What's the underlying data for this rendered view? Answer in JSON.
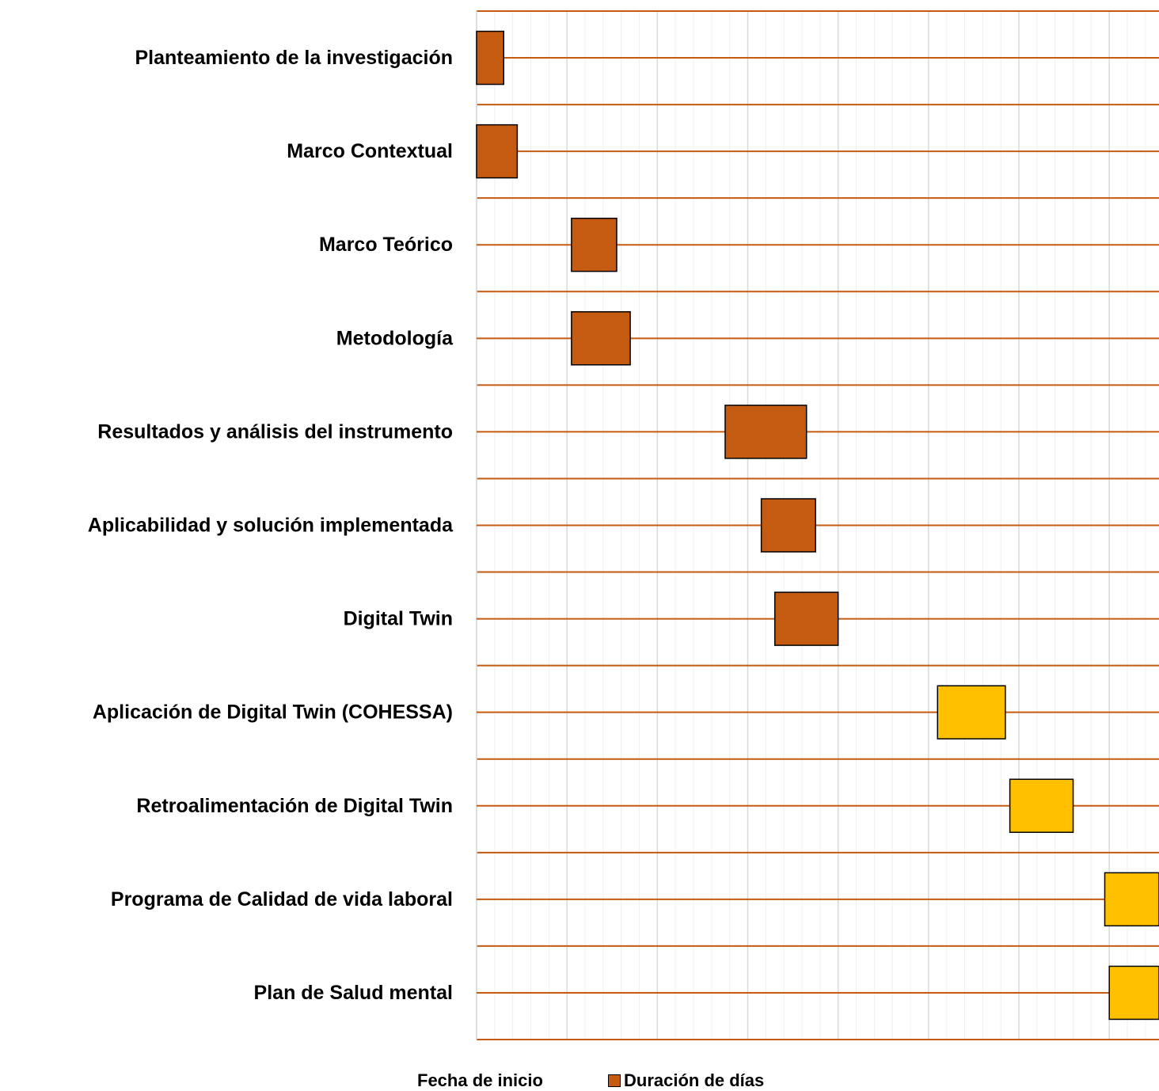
{
  "chart_data": {
    "type": "bar",
    "orientation": "horizontal",
    "stacked": true,
    "categories": [
      "Planteamiento de la investigación",
      "Marco Contextual",
      "Marco Teórico",
      "Metodología",
      "Resultados y análisis del instrumento",
      "Aplicabilidad y solución implementada",
      "Digital Twin",
      "Aplicación de Digital Twin (COHESSA)",
      "Retroalimentación de Digital Twin",
      "Programa de Calidad de vida laboral",
      "Plan de Salud mental "
    ],
    "x_range": [
      0,
      151
    ],
    "series": [
      {
        "name": "Fecha de inicio",
        "color": "none",
        "values": [
          0,
          0,
          21,
          21,
          55,
          63,
          66,
          102,
          118,
          139,
          140
        ]
      },
      {
        "name": "Duración de días",
        "color": "#c55a11",
        "values": [
          6,
          9,
          10,
          13,
          18,
          12,
          14,
          15,
          14,
          12,
          11
        ],
        "point_colors": [
          "#c55a11",
          "#c55a11",
          "#c55a11",
          "#c55a11",
          "#c55a11",
          "#c55a11",
          "#c55a11",
          "#ffc000",
          "#ffc000",
          "#ffc000",
          "#ffc000"
        ]
      }
    ],
    "grid": true,
    "legend_position": "bottom",
    "colors": {
      "row_line": "#c55a11",
      "grid_major": "#d9d9d9",
      "grid_minor": "#f0f0f0",
      "bar_border": "#000000"
    }
  }
}
